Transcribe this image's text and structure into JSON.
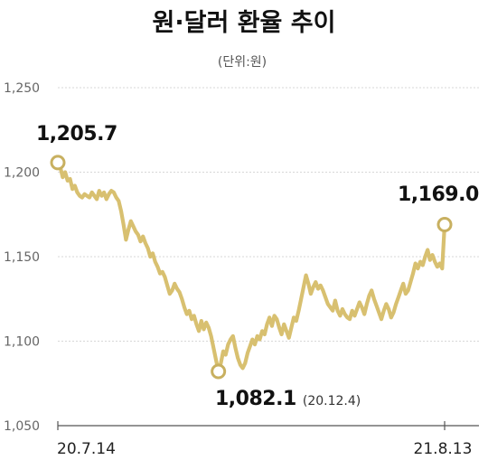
{
  "chart_data": {
    "type": "line",
    "title": "원·달러 환율 추이",
    "subtitle": "(단위:원)",
    "ylim": [
      1050,
      1250
    ],
    "yticks": [
      "1,250",
      "1,200",
      "1,150",
      "1,100",
      "1,050"
    ],
    "ytick_values": [
      1250,
      1200,
      1150,
      1100,
      1050
    ],
    "xticks": [
      "20.7.14",
      "21.8.13"
    ],
    "grid": true,
    "line_color": "#d8c070",
    "marker_color": "#c8b060",
    "annotations": {
      "start": {
        "value": "1,205.7",
        "y": 1205.7
      },
      "low": {
        "value": "1,082.1",
        "date": "(20.12.4)",
        "y": 1082.1
      },
      "end": {
        "value": "1,169.0",
        "y": 1169.0
      }
    },
    "series": [
      {
        "values": [
          1205.7,
          1203,
          1197,
          1200,
          1195,
          1196,
          1190,
          1192,
          1188,
          1186,
          1185,
          1187,
          1186,
          1185,
          1188,
          1186,
          1184,
          1189,
          1186,
          1188,
          1184,
          1187,
          1189,
          1188,
          1185,
          1183,
          1177,
          1169,
          1160,
          1166,
          1171,
          1168,
          1165,
          1163,
          1159,
          1162,
          1158,
          1155,
          1150,
          1152,
          1147,
          1144,
          1140,
          1141,
          1138,
          1133,
          1128,
          1130,
          1134,
          1131,
          1129,
          1125,
          1120,
          1116,
          1118,
          1113,
          1115,
          1110,
          1106,
          1112,
          1107,
          1111,
          1108,
          1103,
          1096,
          1089,
          1082.1,
          1087,
          1094,
          1092,
          1098,
          1101,
          1103,
          1096,
          1090,
          1086,
          1084,
          1087,
          1093,
          1097,
          1101,
          1098,
          1103,
          1101,
          1106,
          1104,
          1110,
          1114,
          1109,
          1115,
          1113,
          1108,
          1104,
          1110,
          1106,
          1102,
          1108,
          1114,
          1112,
          1118,
          1125,
          1132,
          1139,
          1134,
          1128,
          1132,
          1135,
          1131,
          1133,
          1130,
          1126,
          1122,
          1120,
          1118,
          1124,
          1118,
          1115,
          1119,
          1116,
          1114,
          1113,
          1118,
          1115,
          1119,
          1123,
          1120,
          1116,
          1122,
          1127,
          1130,
          1125,
          1121,
          1117,
          1113,
          1118,
          1122,
          1119,
          1114,
          1117,
          1122,
          1126,
          1130,
          1134,
          1128,
          1130,
          1135,
          1140,
          1146,
          1143,
          1147,
          1145,
          1150,
          1154,
          1148,
          1151,
          1147,
          1144,
          1146,
          1143,
          1169.0
        ]
      }
    ]
  }
}
